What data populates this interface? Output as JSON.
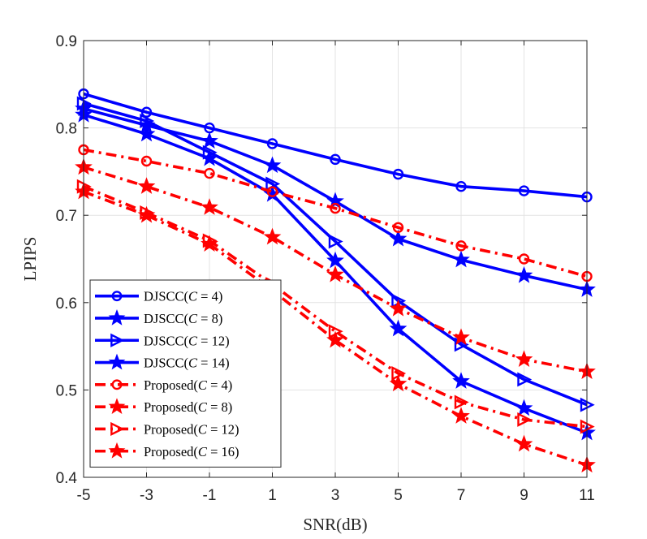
{
  "chart_data": {
    "type": "line",
    "title": "",
    "xlabel": "SNR(dB)",
    "ylabel": "LPIPS",
    "x": [
      -5,
      -3,
      -1,
      1,
      3,
      5,
      7,
      9,
      11
    ],
    "x_tick_labels": [
      "-5",
      "-3",
      "-1",
      "1",
      "3",
      "5",
      "7",
      "9",
      "11"
    ],
    "xlim": [
      -5,
      11
    ],
    "ylim": [
      0.4,
      0.9
    ],
    "y_ticks": [
      0.4,
      0.5,
      0.6,
      0.7,
      0.8,
      0.9
    ],
    "y_tick_labels": [
      "0.4",
      "0.5",
      "0.6",
      "0.7",
      "0.8",
      "0.9"
    ],
    "grid": true,
    "legend_position": "bottom-left",
    "series": [
      {
        "name": "DJSCC(C = 4)",
        "legend_prefix": "DJSCC(",
        "legend_var": "C",
        "legend_rest": " = 4)",
        "color": "#0000ff",
        "dash": "solid",
        "marker": "circle",
        "values": [
          0.839,
          0.818,
          0.8,
          0.782,
          0.764,
          0.747,
          0.733,
          0.728,
          0.721
        ]
      },
      {
        "name": "DJSCC(C = 8)",
        "legend_prefix": "DJSCC(",
        "legend_var": "C",
        "legend_rest": " = 8)",
        "color": "#0000ff",
        "dash": "solid",
        "marker": "star",
        "values": [
          0.822,
          0.803,
          0.785,
          0.757,
          0.716,
          0.673,
          0.649,
          0.631,
          0.615
        ]
      },
      {
        "name": "DJSCC(C = 12)",
        "legend_prefix": "DJSCC(",
        "legend_var": "C",
        "legend_rest": " = 12)",
        "color": "#0000ff",
        "dash": "solid",
        "marker": "triangle-right",
        "values": [
          0.828,
          0.808,
          0.772,
          0.736,
          0.67,
          0.602,
          0.552,
          0.512,
          0.483
        ]
      },
      {
        "name": "DJSCC(C = 14)",
        "legend_prefix": "DJSCC(",
        "legend_var": "C",
        "legend_rest": " = 14)",
        "color": "#0000ff",
        "dash": "solid",
        "marker": "star",
        "values": [
          0.815,
          0.793,
          0.765,
          0.724,
          0.648,
          0.57,
          0.51,
          0.479,
          0.451
        ]
      },
      {
        "name": "Proposed(C = 4)",
        "legend_prefix": "Proposed(",
        "legend_var": "C",
        "legend_rest": " = 4)",
        "color": "#ff0000",
        "dash": "dashdot",
        "marker": "circle",
        "values": [
          0.775,
          0.762,
          0.748,
          0.727,
          0.708,
          0.686,
          0.665,
          0.65,
          0.63
        ]
      },
      {
        "name": "Proposed(C = 8)",
        "legend_prefix": "Proposed(",
        "legend_var": "C",
        "legend_rest": " = 8)",
        "color": "#ff0000",
        "dash": "dashdot",
        "marker": "star",
        "values": [
          0.755,
          0.733,
          0.709,
          0.675,
          0.632,
          0.593,
          0.56,
          0.535,
          0.521
        ]
      },
      {
        "name": "Proposed(C = 12)",
        "legend_prefix": "Proposed(",
        "legend_var": "C",
        "legend_rest": " = 12)",
        "color": "#ff0000",
        "dash": "dashdot",
        "marker": "triangle-right",
        "values": [
          0.733,
          0.703,
          0.671,
          0.621,
          0.567,
          0.519,
          0.486,
          0.466,
          0.458
        ]
      },
      {
        "name": "Proposed(C = 16)",
        "legend_prefix": "Proposed(",
        "legend_var": "C",
        "legend_rest": " = 16)",
        "color": "#ff0000",
        "dash": "dashdot",
        "marker": "star",
        "values": [
          0.727,
          0.7,
          0.667,
          0.614,
          0.557,
          0.507,
          0.47,
          0.438,
          0.414
        ]
      }
    ]
  }
}
